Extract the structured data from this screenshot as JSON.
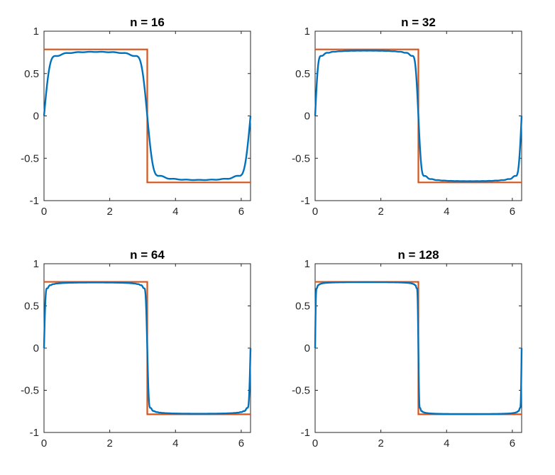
{
  "colors": {
    "approximation": "#0072BD",
    "square_wave": "#D95319",
    "axes": "#262626",
    "background": "#ffffff"
  },
  "chart_data": [
    {
      "type": "line",
      "title": "n = 16",
      "n": 16,
      "xlim": [
        0,
        6.2832
      ],
      "ylim": [
        -1,
        1
      ],
      "xticks": [
        "0",
        "2",
        "4",
        "6"
      ],
      "xtick_values": [
        0,
        2,
        4,
        6
      ],
      "yticks": [
        "1",
        "0.5",
        "0",
        "-0.5",
        "-1"
      ],
      "ytick_values": [
        1,
        0.5,
        0,
        -0.5,
        -1
      ],
      "square_wave_level": 0.785,
      "jump_at": 3.1416,
      "grid": false
    },
    {
      "type": "line",
      "title": "n = 32",
      "n": 32,
      "xlim": [
        0,
        6.2832
      ],
      "ylim": [
        -1,
        1
      ],
      "xticks": [
        "0",
        "2",
        "4",
        "6"
      ],
      "xtick_values": [
        0,
        2,
        4,
        6
      ],
      "yticks": [
        "1",
        "0.5",
        "0",
        "-0.5",
        "-1"
      ],
      "ytick_values": [
        1,
        0.5,
        0,
        -0.5,
        -1
      ],
      "square_wave_level": 0.785,
      "jump_at": 3.1416,
      "grid": false
    },
    {
      "type": "line",
      "title": "n = 64",
      "n": 64,
      "xlim": [
        0,
        6.2832
      ],
      "ylim": [
        -1,
        1
      ],
      "xticks": [
        "0",
        "2",
        "4",
        "6"
      ],
      "xtick_values": [
        0,
        2,
        4,
        6
      ],
      "yticks": [
        "1",
        "0.5",
        "0",
        "-0.5",
        "-1"
      ],
      "ytick_values": [
        1,
        0.5,
        0,
        -0.5,
        -1
      ],
      "square_wave_level": 0.785,
      "jump_at": 3.1416,
      "grid": false
    },
    {
      "type": "line",
      "title": "n = 128",
      "n": 128,
      "xlim": [
        0,
        6.2832
      ],
      "ylim": [
        -1,
        1
      ],
      "xticks": [
        "0",
        "2",
        "4",
        "6"
      ],
      "xtick_values": [
        0,
        2,
        4,
        6
      ],
      "yticks": [
        "1",
        "0.5",
        "0",
        "-0.5",
        "-1"
      ],
      "ytick_values": [
        1,
        0.5,
        0,
        -0.5,
        -1
      ],
      "square_wave_level": 0.785,
      "jump_at": 3.1416,
      "grid": false
    }
  ]
}
